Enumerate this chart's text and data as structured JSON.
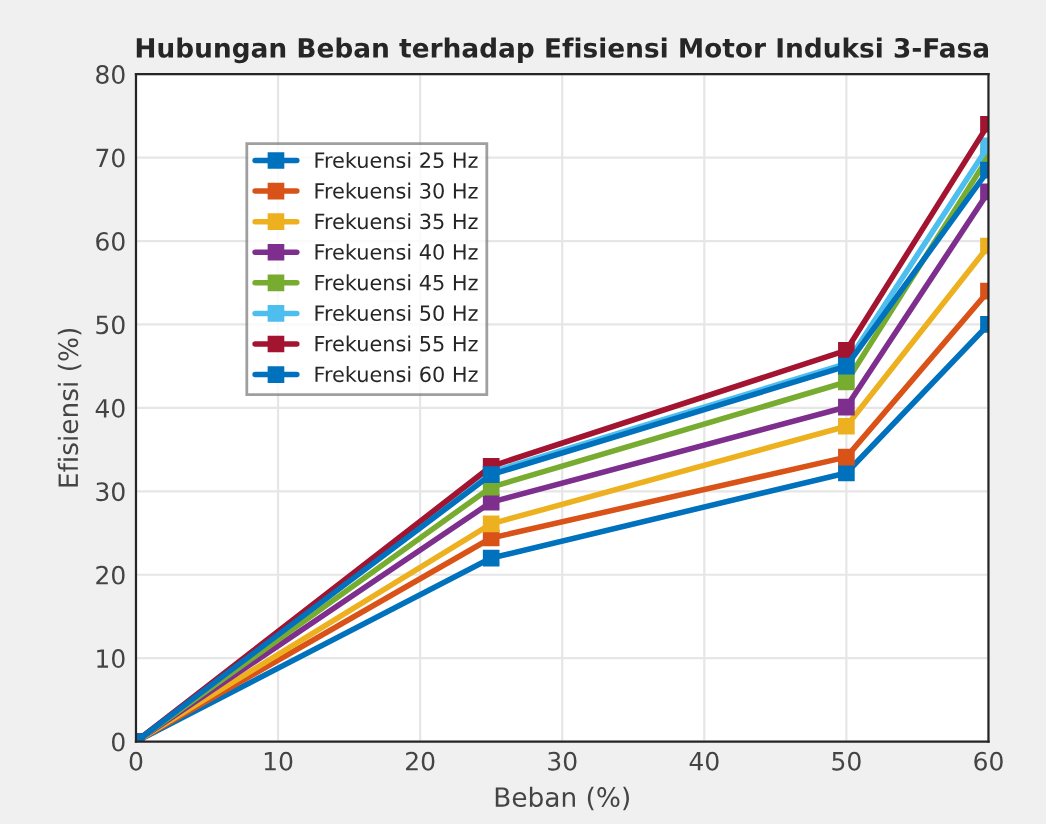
{
  "chart_data": {
    "type": "line",
    "title": "Hubungan Beban terhadap Efisiensi Motor Induksi 3-Fasa",
    "xlabel": "Beban (%)",
    "ylabel": "Efisiensi (%)",
    "x": [
      0,
      25,
      50,
      60
    ],
    "series": [
      {
        "name": "Frekuensi 25 Hz",
        "color": "#0072bd",
        "values": [
          0,
          22,
          32.2,
          50
        ]
      },
      {
        "name": "Frekuensi 30 Hz",
        "color": "#d95319",
        "values": [
          0,
          24.4,
          34.1,
          54
        ]
      },
      {
        "name": "Frekuensi 35 Hz",
        "color": "#edb120",
        "values": [
          0,
          26.1,
          37.8,
          59.4
        ]
      },
      {
        "name": "Frekuensi 40 Hz",
        "color": "#7e2f8e",
        "values": [
          0,
          28.7,
          40.1,
          65.9
        ]
      },
      {
        "name": "Frekuensi 45 Hz",
        "color": "#77ac30",
        "values": [
          0,
          30.5,
          43.1,
          70.1
        ]
      },
      {
        "name": "Frekuensi 50 Hz",
        "color": "#4dbeee",
        "values": [
          0,
          32.3,
          45.3,
          71.4
        ]
      },
      {
        "name": "Frekuensi 55 Hz",
        "color": "#a2142f",
        "values": [
          0,
          33,
          46.9,
          74
        ]
      },
      {
        "name": "Frekuensi 60 Hz",
        "color": "#0072bd",
        "values": [
          0,
          32,
          45,
          68.5
        ]
      }
    ],
    "xlim": [
      0,
      60
    ],
    "xticks": [
      0,
      10,
      20,
      30,
      40,
      50,
      60
    ],
    "ylim": [
      0,
      80
    ],
    "yticks": [
      0,
      10,
      20,
      30,
      40,
      50,
      60,
      70,
      80
    ],
    "grid": true,
    "legend": "top left",
    "marker": "square",
    "line_style": "solid"
  }
}
